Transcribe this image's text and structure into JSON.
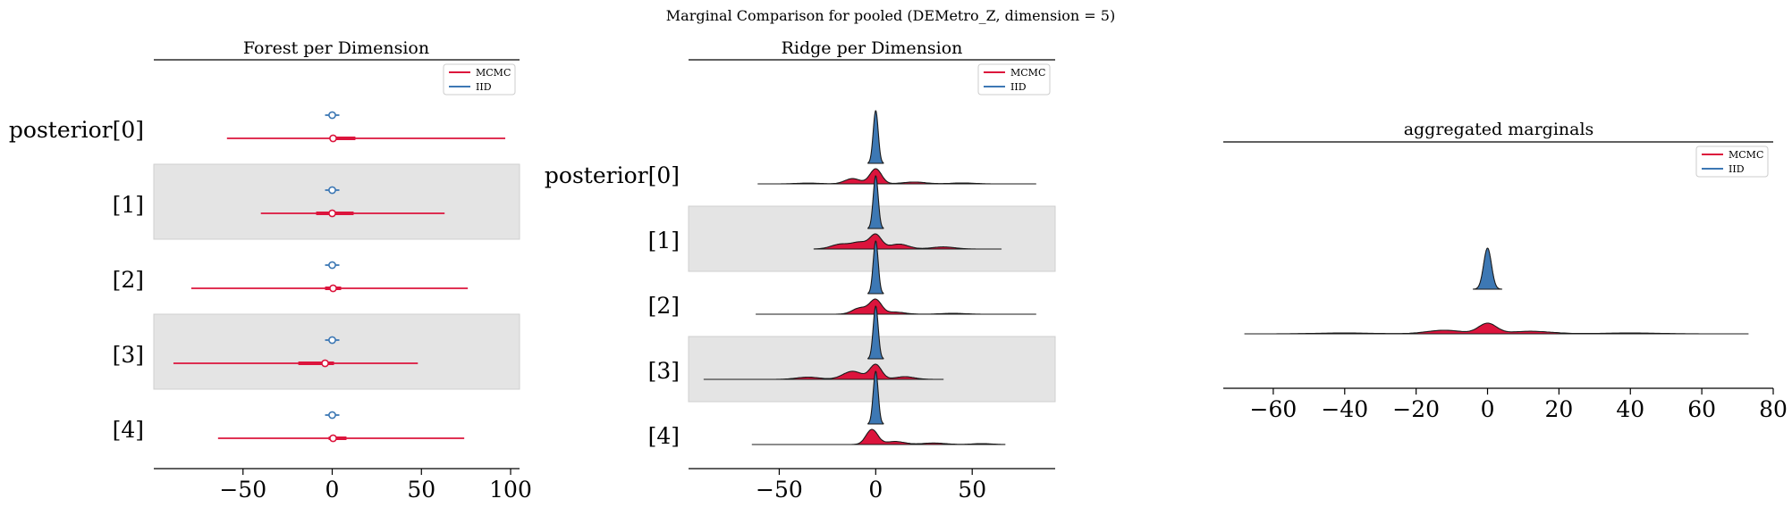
{
  "figure": {
    "suptitle": "Marginal Comparison for pooled (DEMetro_Z, dimension = 5)"
  },
  "colors": {
    "mcmc": "#dc143c",
    "iid": "#3d78b4",
    "band": "#e4e4e4",
    "outline": "#1a1a1a"
  },
  "chart_data": [
    {
      "type": "forest",
      "title": "Forest per Dimension",
      "row_labels": [
        "posterior[0]",
        "[1]",
        "[2]",
        "[3]",
        "[4]"
      ],
      "xlim": [
        -100,
        105
      ],
      "xticks": [
        -50,
        0,
        50,
        100
      ],
      "legend": {
        "entries": [
          "MCMC",
          "IID"
        ],
        "placement": "top-right"
      },
      "series": [
        {
          "name": "MCMC",
          "color_key": "mcmc",
          "rows": [
            {
              "center": 0.5,
              "hdi": [
                -59,
                97
              ],
              "iqr": [
                0,
                13
              ]
            },
            {
              "center": 0,
              "hdi": [
                -40,
                63
              ],
              "iqr": [
                -9,
                12
              ]
            },
            {
              "center": 0.5,
              "hdi": [
                -79,
                76
              ],
              "iqr": [
                -4,
                5
              ]
            },
            {
              "center": -4,
              "hdi": [
                -89,
                48
              ],
              "iqr": [
                -19,
                1
              ]
            },
            {
              "center": 0.5,
              "hdi": [
                -64,
                74
              ],
              "iqr": [
                -2,
                8
              ]
            }
          ]
        },
        {
          "name": "IID",
          "color_key": "iid",
          "rows": [
            {
              "center": 0,
              "hdi": [
                -4,
                4
              ],
              "iqr": [
                -2,
                2
              ]
            },
            {
              "center": 0,
              "hdi": [
                -4,
                4
              ],
              "iqr": [
                -2,
                2
              ]
            },
            {
              "center": 0,
              "hdi": [
                -4,
                4
              ],
              "iqr": [
                -2,
                2
              ]
            },
            {
              "center": 0,
              "hdi": [
                -4,
                4
              ],
              "iqr": [
                -2,
                2
              ]
            },
            {
              "center": 0,
              "hdi": [
                -4,
                4
              ],
              "iqr": [
                -2,
                2
              ]
            }
          ]
        }
      ]
    },
    {
      "type": "ridge",
      "title": "Ridge per Dimension",
      "row_labels": [
        "posterior[0]",
        "[1]",
        "[2]",
        "[3]",
        "[4]"
      ],
      "xlim": [
        -97,
        93
      ],
      "xticks": [
        -50,
        0,
        50
      ],
      "legend": {
        "entries": [
          "MCMC",
          "IID"
        ],
        "placement": "top-right"
      },
      "series": [
        {
          "name": "MCMC",
          "color_key": "mcmc",
          "rows": [
            {
              "range": [
                -61,
                83
              ],
              "peaks": [
                [
                  0,
                  1.0,
                  3
                ],
                [
                  -12,
                  0.35,
                  4
                ],
                [
                  20,
                  0.12,
                  6
                ],
                [
                  45,
                  0.06,
                  6
                ],
                [
                  -35,
                  0.05,
                  6
                ]
              ]
            },
            {
              "range": [
                -32,
                65
              ],
              "peaks": [
                [
                  0,
                  1.0,
                  3
                ],
                [
                  -18,
                  0.35,
                  5
                ],
                [
                  -8,
                  0.45,
                  4
                ],
                [
                  12,
                  0.35,
                  5
                ],
                [
                  35,
                  0.15,
                  6
                ]
              ]
            },
            {
              "range": [
                -62,
                83
              ],
              "peaks": [
                [
                  0,
                  1.0,
                  3
                ],
                [
                  -8,
                  0.45,
                  4
                ],
                [
                  10,
                  0.15,
                  5
                ],
                [
                  40,
                  0.06,
                  6
                ]
              ]
            },
            {
              "range": [
                -89,
                35
              ],
              "peaks": [
                [
                  0,
                  1.0,
                  3
                ],
                [
                  -12,
                  0.55,
                  5
                ],
                [
                  -35,
                  0.15,
                  6
                ],
                [
                  15,
                  0.18,
                  5
                ]
              ]
            },
            {
              "range": [
                -64,
                67
              ],
              "peaks": [
                [
                  -2,
                  1.0,
                  3
                ],
                [
                  10,
                  0.2,
                  5
                ],
                [
                  30,
                  0.1,
                  6
                ],
                [
                  55,
                  0.06,
                  5
                ]
              ]
            }
          ]
        },
        {
          "name": "IID",
          "color_key": "iid",
          "rows": [
            {
              "range": [
                -4,
                4
              ],
              "peaks": [
                [
                  0,
                  1.0,
                  1.3
                ]
              ]
            },
            {
              "range": [
                -4,
                4
              ],
              "peaks": [
                [
                  0,
                  1.0,
                  1.3
                ]
              ]
            },
            {
              "range": [
                -4,
                4
              ],
              "peaks": [
                [
                  0,
                  1.0,
                  1.3
                ]
              ]
            },
            {
              "range": [
                -4,
                4
              ],
              "peaks": [
                [
                  0,
                  1.0,
                  1.3
                ]
              ]
            },
            {
              "range": [
                -4,
                4
              ],
              "peaks": [
                [
                  0,
                  1.0,
                  1.3
                ]
              ]
            }
          ]
        }
      ]
    },
    {
      "type": "ridge",
      "title": "aggregated marginals",
      "xlim": [
        -74,
        80
      ],
      "xticks": [
        -60,
        -40,
        -20,
        0,
        20,
        40,
        60,
        80
      ],
      "legend": {
        "entries": [
          "MCMC",
          "IID"
        ],
        "placement": "top-right"
      },
      "series": [
        {
          "name": "MCMC",
          "color_key": "mcmc",
          "range": [
            -68,
            73
          ],
          "peaks": [
            [
              0,
              1.0,
              2.5
            ],
            [
              -12,
              0.35,
              5
            ],
            [
              12,
              0.25,
              6
            ],
            [
              40,
              0.08,
              8
            ],
            [
              -40,
              0.08,
              8
            ]
          ]
        },
        {
          "name": "IID",
          "color_key": "iid",
          "range": [
            -4,
            4
          ],
          "peaks": [
            [
              0,
              1.0,
              1.1
            ]
          ]
        }
      ]
    }
  ]
}
